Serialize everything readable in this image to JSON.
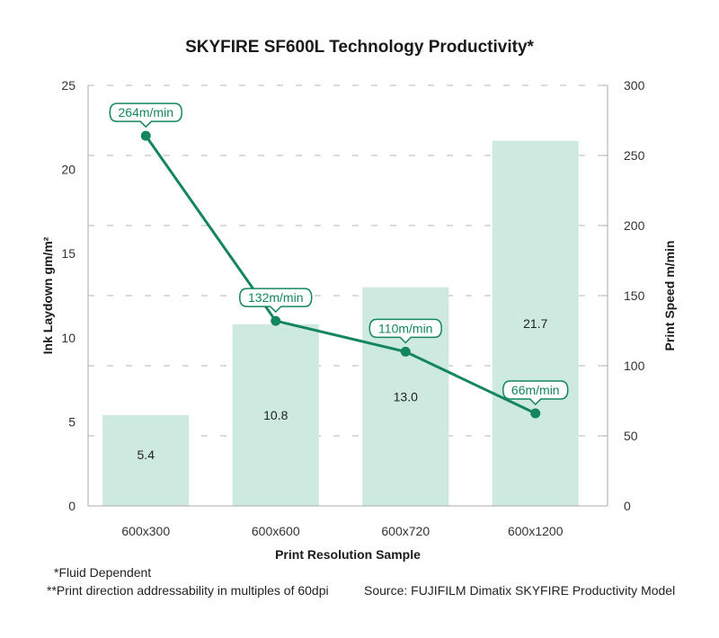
{
  "chart_data": {
    "type": "bar",
    "title": "SKYFIRE SF600L Technology Productivity*",
    "xlabel": "Print Resolution Sample",
    "ylabel": "Ink Laydown gm/m²",
    "y2label": "Print Speed m/min",
    "categories": [
      "600x300",
      "600x600",
      "600x720",
      "600x1200"
    ],
    "ylim": [
      0,
      25
    ],
    "yticks": [
      0,
      5,
      10,
      15,
      20,
      25
    ],
    "y2lim": [
      0,
      300
    ],
    "y2ticks": [
      0,
      50,
      100,
      150,
      200,
      250,
      300
    ],
    "grid": "horizontal dashed at secondary-axis ticks",
    "series": [
      {
        "name": "Ink Laydown",
        "type": "bar",
        "axis": "left",
        "values": [
          5.4,
          10.8,
          13.0,
          21.7
        ],
        "labels": [
          "5.4",
          "10.8",
          "13.0",
          "21.7"
        ],
        "color": "#cde9e0"
      },
      {
        "name": "Print Speed",
        "type": "line",
        "axis": "right",
        "values": [
          264,
          132,
          110,
          66
        ],
        "labels": [
          "264m/min",
          "132m/min",
          "110m/min",
          "66m/min"
        ],
        "color": "#14865f"
      }
    ]
  },
  "footnotes": {
    "fluid": "*Fluid Dependent",
    "addressability": "**Print direction addressability in multiples of 60dpi",
    "source": "Source: FUJIFILM Dimatix SKYFIRE Productivity Model"
  }
}
